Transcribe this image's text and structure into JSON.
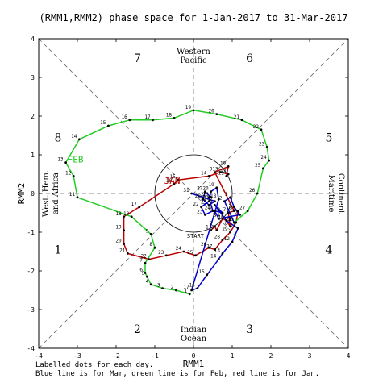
{
  "chart_data": {
    "type": "line",
    "title": "(RMM1,RMM2) phase space for  1-Jan-2017 to 31-Mar-2017",
    "xlabel": "RMM1",
    "ylabel": "RMM2",
    "xlim": [
      -4,
      4
    ],
    "ylim": [
      -4,
      4
    ],
    "xticks": [
      -4,
      -3,
      -2,
      -1,
      0,
      1,
      2,
      3,
      4
    ],
    "yticks": [
      -4,
      -3,
      -2,
      -1,
      0,
      1,
      2,
      3,
      4
    ],
    "grid": false,
    "phase_numbers": [
      "1",
      "2",
      "3",
      "4",
      "5",
      "6",
      "7",
      "8"
    ],
    "region_labels": {
      "top": [
        "Western",
        "Pacific"
      ],
      "bottom": [
        "Indian",
        "Ocean"
      ],
      "left": [
        "West. Hem.",
        "and Africa"
      ],
      "right": [
        "Maritime",
        "Continent"
      ]
    },
    "start_label": "START",
    "series": [
      {
        "name": "JAN",
        "color": "#bb0000",
        "points": [
          [
            0.45,
            -0.95
          ],
          [
            0.55,
            -0.85
          ],
          [
            0.6,
            -0.95
          ],
          [
            0.75,
            -0.65
          ],
          [
            0.85,
            -0.7
          ],
          [
            0.95,
            -0.85
          ],
          [
            0.9,
            -0.5
          ],
          [
            1.05,
            -0.45
          ],
          [
            0.55,
            0.55
          ],
          [
            0.9,
            0.7
          ],
          [
            0.85,
            0.45
          ],
          [
            0.9,
            0.5
          ],
          [
            0.7,
            0.55
          ],
          [
            0.4,
            0.45
          ],
          [
            -0.4,
            0.35
          ],
          [
            -0.5,
            0.25
          ],
          [
            -1.4,
            -0.35
          ],
          [
            -1.8,
            -0.6
          ],
          [
            -1.8,
            -0.95
          ],
          [
            -1.8,
            -1.3
          ],
          [
            -1.7,
            -1.55
          ],
          [
            -1.15,
            -1.7
          ],
          [
            -0.7,
            -1.6
          ],
          [
            -0.25,
            -1.5
          ],
          [
            0.05,
            -1.6
          ],
          [
            0.4,
            -1.4
          ],
          [
            0.55,
            -1.45
          ],
          [
            0.75,
            -1.2
          ],
          [
            0.95,
            -1.0
          ],
          [
            1.1,
            -0.75
          ],
          [
            1.15,
            -0.45
          ]
        ]
      },
      {
        "name": "FEB",
        "color": "#22cc22",
        "points": [
          [
            -0.1,
            -2.6
          ],
          [
            -0.45,
            -2.5
          ],
          [
            -0.8,
            -2.45
          ],
          [
            -1.1,
            -2.35
          ],
          [
            -1.2,
            -2.15
          ],
          [
            -1.25,
            -2.05
          ],
          [
            -1.25,
            -1.8
          ],
          [
            -1.0,
            -1.4
          ],
          [
            -1.1,
            -1.05
          ],
          [
            -1.6,
            -0.6
          ],
          [
            -3.0,
            -0.1
          ],
          [
            -3.1,
            0.45
          ],
          [
            -3.3,
            0.8
          ],
          [
            -2.95,
            1.4
          ],
          [
            -2.2,
            1.75
          ],
          [
            -1.65,
            1.9
          ],
          [
            -1.05,
            1.9
          ],
          [
            -0.5,
            1.95
          ],
          [
            0.0,
            2.15
          ],
          [
            0.6,
            2.05
          ],
          [
            1.25,
            1.9
          ],
          [
            1.75,
            1.65
          ],
          [
            1.9,
            1.2
          ],
          [
            1.95,
            0.85
          ],
          [
            1.8,
            0.65
          ],
          [
            1.65,
            0.0
          ],
          [
            1.4,
            -0.45
          ],
          [
            1.05,
            -0.75
          ]
        ]
      },
      {
        "name": "MAR",
        "color": "#0000cc",
        "points": [
          [
            1.05,
            -0.75
          ],
          [
            0.8,
            -0.2
          ],
          [
            0.95,
            -0.1
          ],
          [
            1.05,
            -0.35
          ],
          [
            1.2,
            -0.55
          ],
          [
            0.65,
            -0.65
          ],
          [
            0.55,
            -0.45
          ],
          [
            0.75,
            -0.5
          ],
          [
            0.55,
            -0.3
          ],
          [
            0.85,
            -0.7
          ],
          [
            1.15,
            -0.9
          ],
          [
            1.0,
            -1.25
          ],
          [
            0.75,
            -1.55
          ],
          [
            0.65,
            -1.7
          ],
          [
            0.35,
            -2.1
          ],
          [
            0.1,
            -2.45
          ],
          [
            -0.05,
            -2.5
          ],
          [
            0.65,
            -0.15
          ],
          [
            0.6,
            0.15
          ],
          [
            0.45,
            0.05
          ],
          [
            0.4,
            -0.2
          ],
          [
            0.2,
            -0.35
          ],
          [
            0.3,
            -0.55
          ],
          [
            0.5,
            -0.45
          ],
          [
            0.4,
            -0.1
          ],
          [
            0.45,
            -0.1
          ],
          [
            0.3,
            0.05
          ],
          [
            0.25,
            -0.15
          ],
          [
            0.4,
            -0.3
          ],
          [
            0.55,
            -0.2
          ],
          [
            -0.05,
            0.0
          ]
        ]
      }
    ]
  },
  "notes": {
    "line1": "Labelled dots for each day.",
    "line2": "Blue line is for Mar, green line is for Feb, red line is for Jan."
  }
}
